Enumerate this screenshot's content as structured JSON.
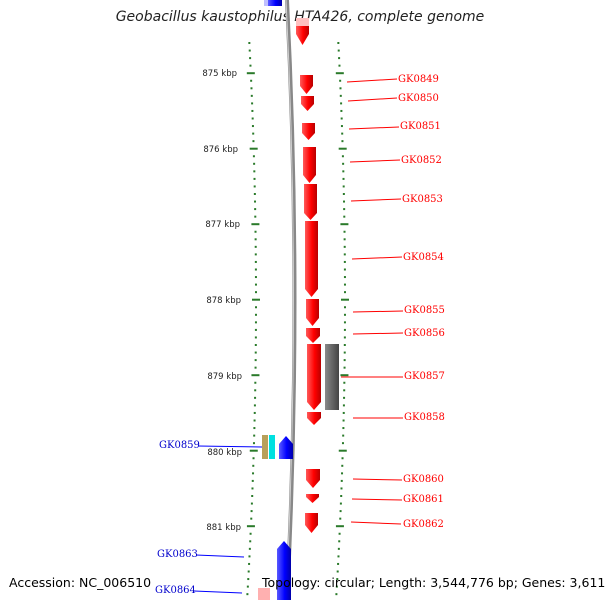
{
  "title": "Geobacillus kaustophilus HTA426, complete genome",
  "footer": {
    "accession": "Accession: NC_006510",
    "topology": "Topology: circular; Length: 3,544,776 bp; Genes: 3,611"
  },
  "scale_labels": [
    "875 kbp",
    "876 kbp",
    "877 kbp",
    "878 kbp",
    "879 kbp",
    "880 kbp",
    "881 kbp"
  ],
  "genes": [
    {
      "name": "GK0849",
      "strand": "forward"
    },
    {
      "name": "GK0850",
      "strand": "forward"
    },
    {
      "name": "GK0851",
      "strand": "forward"
    },
    {
      "name": "GK0852",
      "strand": "forward"
    },
    {
      "name": "GK0853",
      "strand": "forward"
    },
    {
      "name": "GK0854",
      "strand": "forward"
    },
    {
      "name": "GK0855",
      "strand": "forward"
    },
    {
      "name": "GK0856",
      "strand": "forward"
    },
    {
      "name": "GK0857",
      "strand": "forward"
    },
    {
      "name": "GK0858",
      "strand": "forward"
    },
    {
      "name": "GK0859",
      "strand": "reverse"
    },
    {
      "name": "GK0860",
      "strand": "forward"
    },
    {
      "name": "GK0861",
      "strand": "forward"
    },
    {
      "name": "GK0862",
      "strand": "forward"
    },
    {
      "name": "GK0863",
      "strand": "reverse"
    },
    {
      "name": "GK0864",
      "strand": "reverse"
    }
  ],
  "colors": {
    "forward_gene": "#ff0000",
    "reverse_gene": "#0000ff",
    "backbone": "#888888",
    "tick": "#2a7a2a",
    "feature_gray": "#666666"
  }
}
